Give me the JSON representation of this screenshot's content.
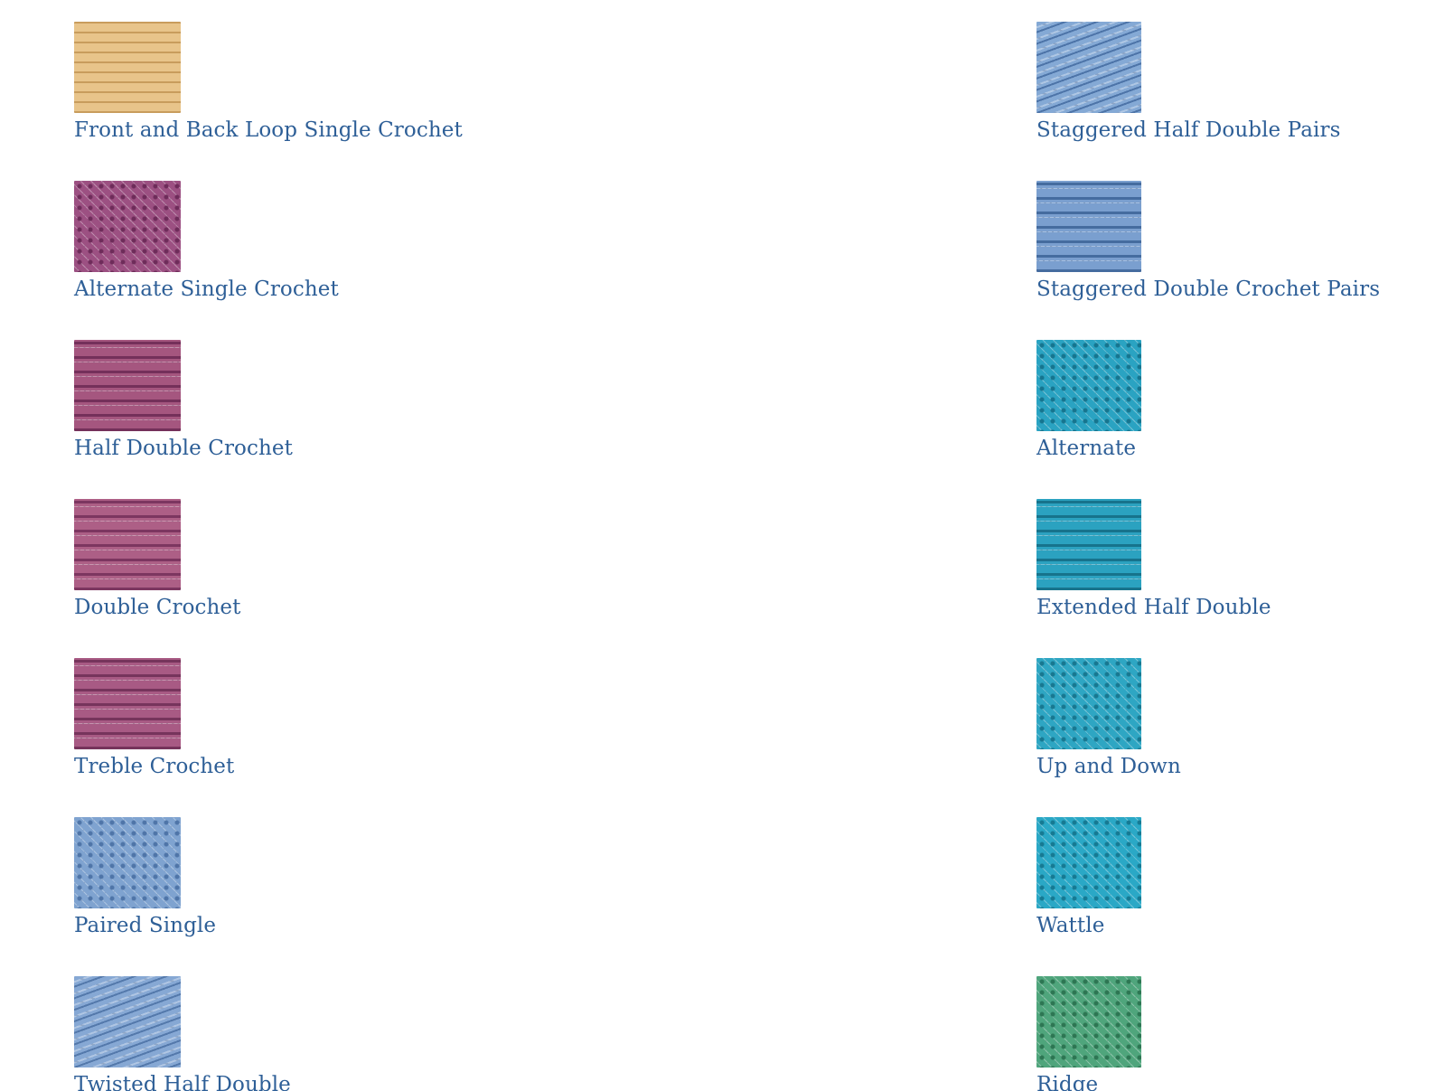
{
  "left_column": [
    {
      "label": "Front and Back Loop Single Crochet",
      "swatch_color": "#e8c48a",
      "swatch_shadow": "#c89c5c",
      "pattern": "dashes"
    },
    {
      "label": "Alternate Single Crochet",
      "swatch_color": "#9c5082",
      "swatch_shadow": "#6e2c5a",
      "pattern": "dots"
    },
    {
      "label": "Half Double Crochet",
      "swatch_color": "#a5567f",
      "swatch_shadow": "#74305a",
      "pattern": "rows"
    },
    {
      "label": "Double Crochet",
      "swatch_color": "#ad5f86",
      "swatch_shadow": "#7c3660",
      "pattern": "rows"
    },
    {
      "label": "Treble Crochet",
      "swatch_color": "#a85a84",
      "swatch_shadow": "#76345c",
      "pattern": "rows"
    },
    {
      "label": "Paired Single",
      "swatch_color": "#7fa3d0",
      "swatch_shadow": "#4f75a8",
      "pattern": "dots"
    },
    {
      "label": "Twisted Half Double",
      "swatch_color": "#86a8d4",
      "swatch_shadow": "#5479ab",
      "pattern": "waves"
    }
  ],
  "right_column": [
    {
      "label": "Staggered Half Double Pairs",
      "swatch_color": "#84a9d5",
      "swatch_shadow": "#4d74a8",
      "pattern": "waves"
    },
    {
      "label": "Staggered Double Crochet Pairs",
      "swatch_color": "#7a9fcf",
      "swatch_shadow": "#456c9f",
      "pattern": "rows"
    },
    {
      "label": "Alternate",
      "swatch_color": "#2aa3c2",
      "swatch_shadow": "#16758f",
      "pattern": "dots"
    },
    {
      "label": "Extended Half Double",
      "swatch_color": "#2ba2c0",
      "swatch_shadow": "#17738c",
      "pattern": "rows"
    },
    {
      "label": "Up and Down",
      "swatch_color": "#2ea6c3",
      "swatch_shadow": "#187891",
      "pattern": "dots"
    },
    {
      "label": "Wattle",
      "swatch_color": "#2aa8c6",
      "swatch_shadow": "#167a93",
      "pattern": "dots"
    },
    {
      "label": "Ridge",
      "swatch_color": "#4fa57c",
      "swatch_shadow": "#2d7653",
      "pattern": "dots"
    }
  ],
  "colors": {
    "link": "#2e5f97",
    "background": "#ffffff"
  }
}
